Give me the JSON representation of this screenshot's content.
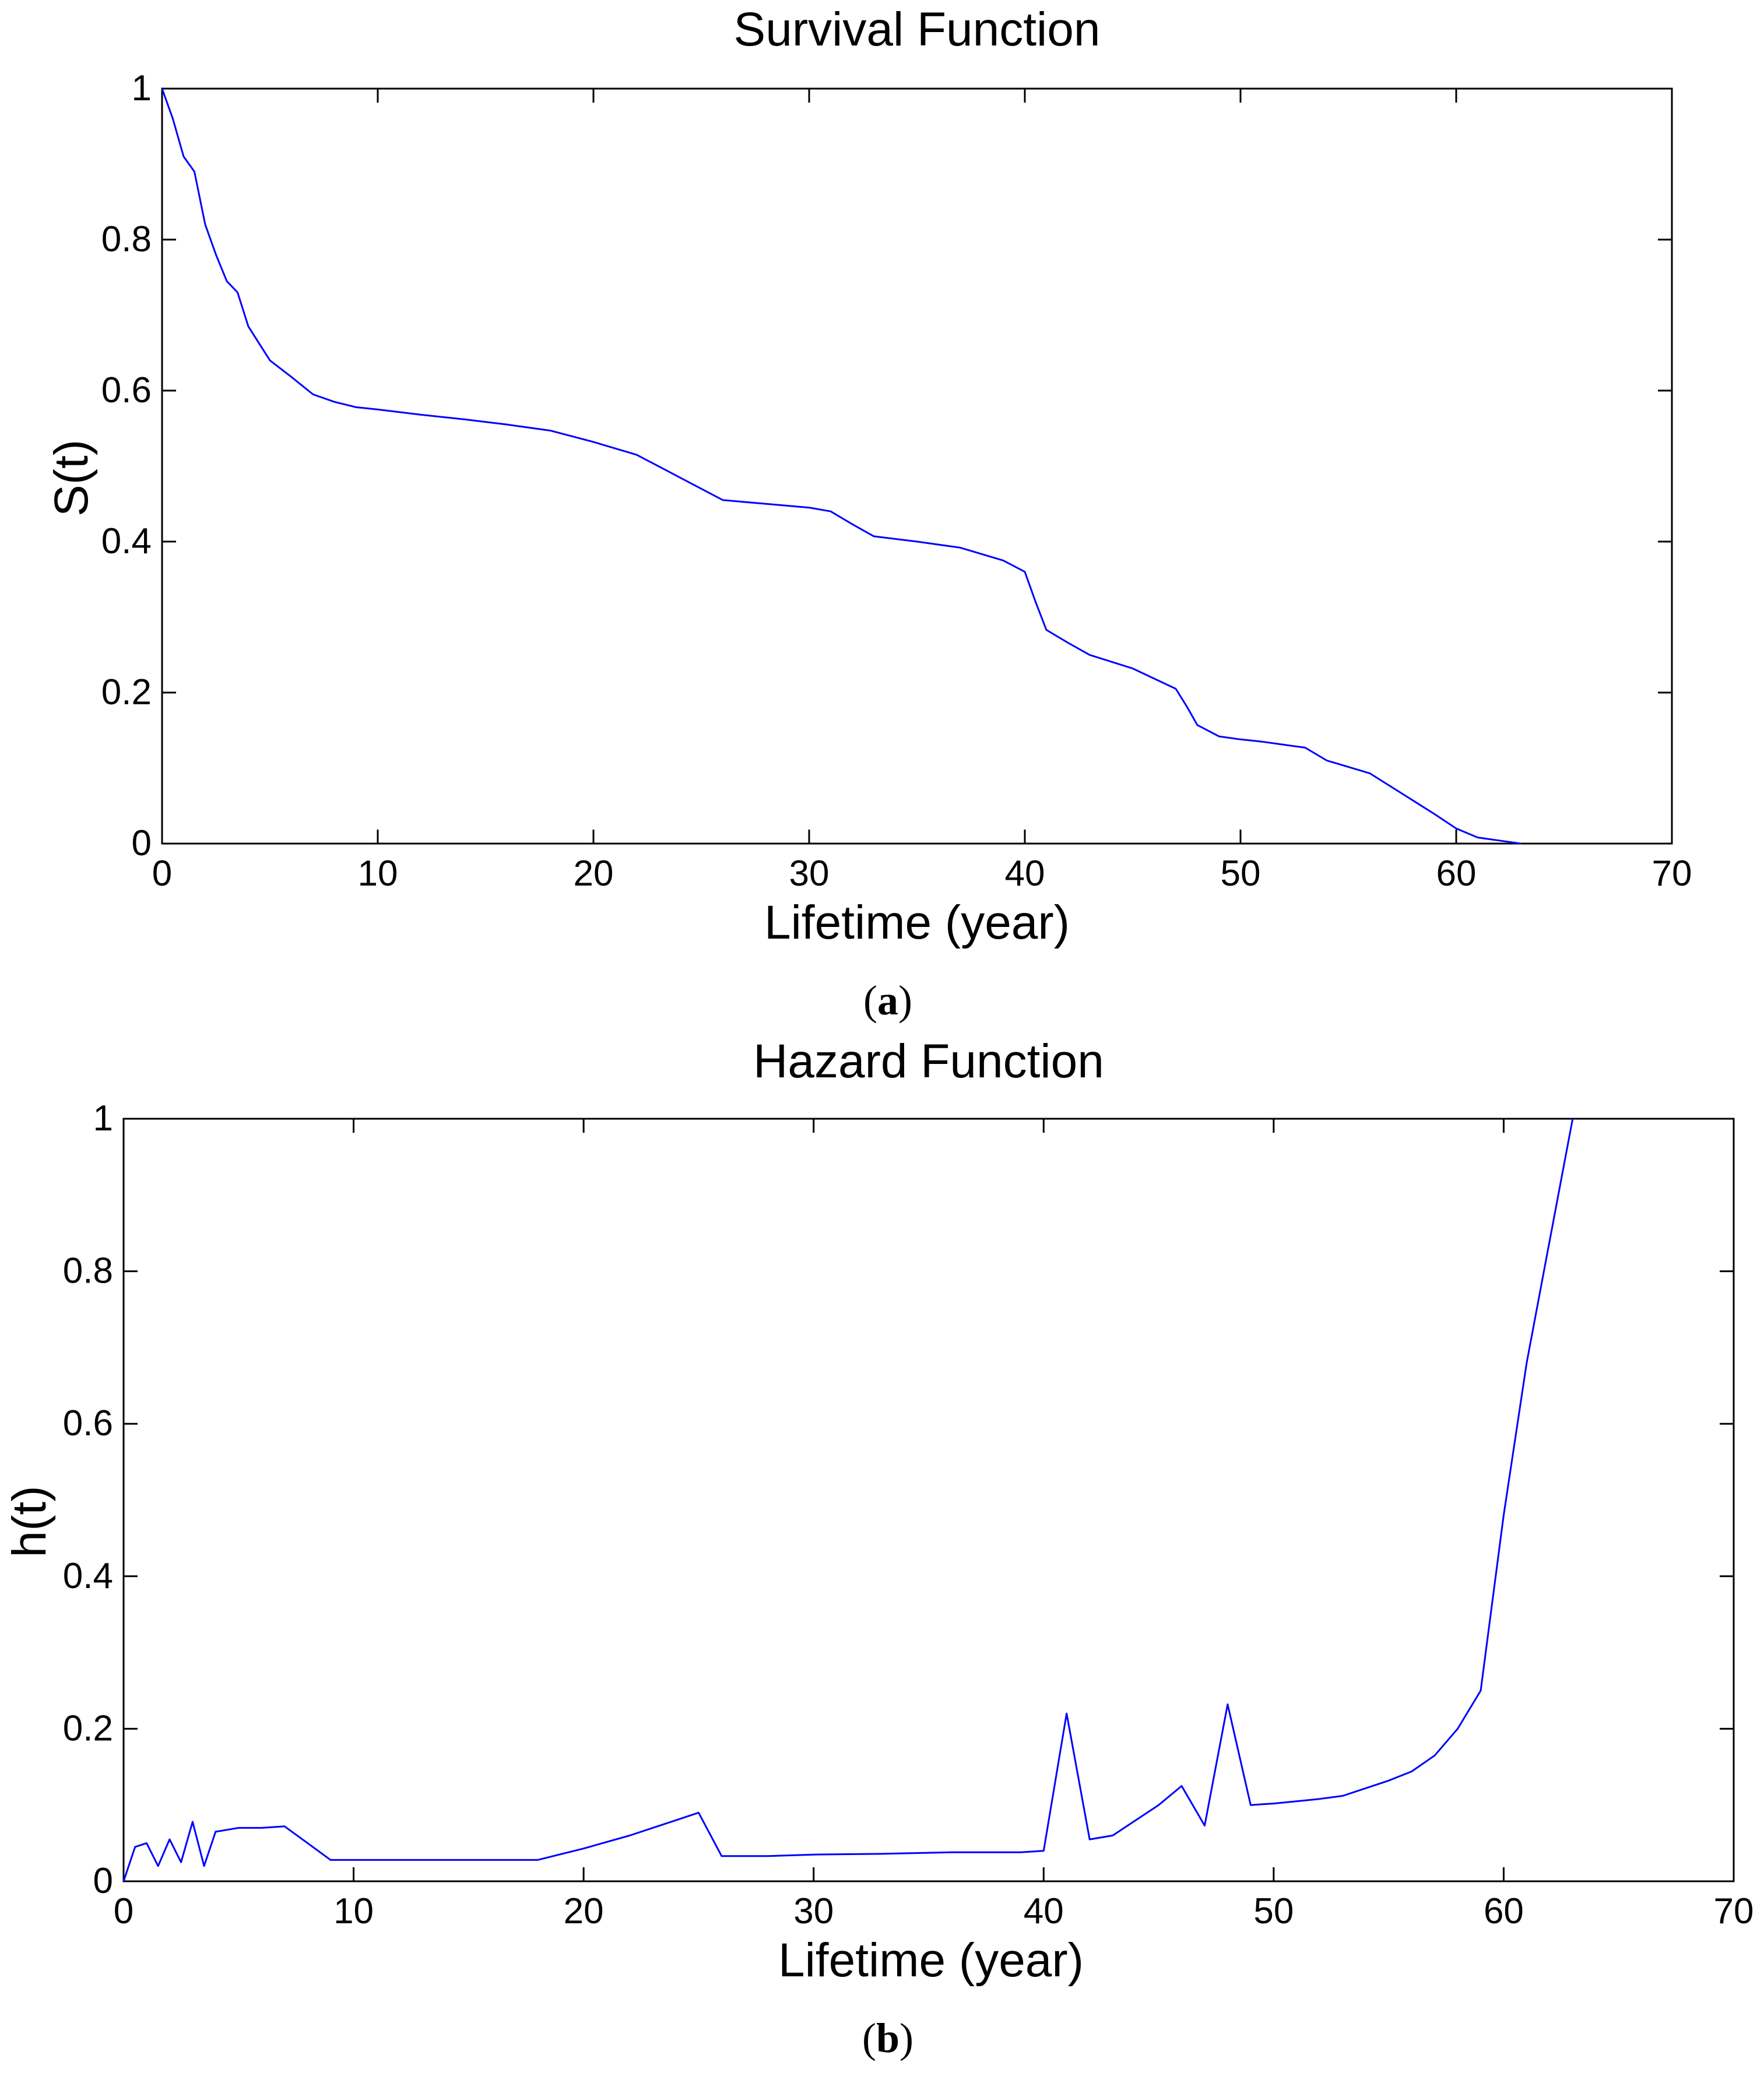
{
  "chart_data": [
    {
      "type": "line",
      "title": "Survival Function",
      "xlabel": "Lifetime (year)",
      "ylabel": "S(t)",
      "xlim": [
        0,
        70
      ],
      "ylim": [
        0,
        1
      ],
      "xticks": [
        0,
        10,
        20,
        30,
        40,
        50,
        60,
        70
      ],
      "xtick_labels": [
        "0",
        "10",
        "20",
        "30",
        "40",
        "50",
        "60",
        "70"
      ],
      "yticks": [
        0,
        0.2,
        0.4,
        0.6,
        0.8,
        1
      ],
      "ytick_labels": [
        "0",
        "0.2",
        "0.4",
        "0.6",
        "0.8",
        "1"
      ],
      "caption_open": "(",
      "caption_letter": "a",
      "caption_close": ")",
      "series": [
        {
          "name": "S(t)",
          "color": "#0000ff",
          "x": [
            0,
            0.5,
            1,
            1.5,
            2,
            2.5,
            3,
            3.5,
            4,
            5,
            6,
            7,
            8,
            9,
            10,
            12,
            14,
            16,
            18,
            20,
            22,
            24,
            26,
            28,
            30,
            31,
            32,
            33,
            35,
            37,
            39,
            40,
            40.5,
            41,
            42,
            43,
            45,
            47,
            47.5,
            48,
            49,
            50,
            51,
            52,
            53,
            54,
            56,
            57,
            58,
            59,
            60,
            61,
            62,
            63
          ],
          "y": [
            1,
            0.96,
            0.91,
            0.89,
            0.82,
            0.78,
            0.745,
            0.73,
            0.685,
            0.64,
            0.618,
            0.595,
            0.585,
            0.578,
            0.575,
            0.568,
            0.562,
            0.555,
            0.547,
            0.532,
            0.515,
            0.485,
            0.455,
            0.45,
            0.445,
            0.44,
            0.423,
            0.407,
            0.4,
            0.392,
            0.375,
            0.36,
            0.32,
            0.283,
            0.266,
            0.25,
            0.232,
            0.205,
            0.182,
            0.157,
            0.142,
            0.138,
            0.135,
            0.131,
            0.127,
            0.11,
            0.093,
            0.075,
            0.057,
            0.039,
            0.02,
            0.008,
            0.004,
            0
          ]
        }
      ]
    },
    {
      "type": "line",
      "title": "Hazard Function",
      "xlabel": "Lifetime (year)",
      "ylabel": "h(t)",
      "xlim": [
        0,
        70
      ],
      "ylim": [
        0,
        1
      ],
      "xticks": [
        0,
        10,
        20,
        30,
        40,
        50,
        60,
        70
      ],
      "xtick_labels": [
        "0",
        "10",
        "20",
        "30",
        "40",
        "50",
        "60",
        "70"
      ],
      "yticks": [
        0,
        0.2,
        0.4,
        0.6,
        0.8,
        1
      ],
      "ytick_labels": [
        "0",
        "0.2",
        "0.4",
        "0.6",
        "0.8",
        "1"
      ],
      "caption_open": "(",
      "caption_letter": "b",
      "caption_close": ")",
      "series": [
        {
          "name": "h(t)",
          "color": "#0000ff",
          "x": [
            0,
            0.5,
            1,
            1.5,
            2,
            2.5,
            3,
            3.5,
            4,
            5,
            6,
            7,
            8,
            9,
            10,
            12,
            14,
            16,
            18,
            20,
            22,
            24,
            25,
            26,
            28,
            30,
            33,
            36,
            39,
            40,
            41,
            42,
            43,
            44,
            45,
            46,
            47,
            48,
            49,
            50,
            51,
            52,
            53,
            54,
            55,
            56,
            57,
            58,
            59,
            60,
            61,
            62,
            63
          ],
          "y": [
            0,
            0.045,
            0.05,
            0.02,
            0.055,
            0.025,
            0.078,
            0.02,
            0.065,
            0.07,
            0.07,
            0.072,
            0.05,
            0.028,
            0.028,
            0.028,
            0.028,
            0.028,
            0.028,
            0.043,
            0.06,
            0.08,
            0.09,
            0.033,
            0.033,
            0.035,
            0.036,
            0.038,
            0.038,
            0.04,
            0.22,
            0.055,
            0.06,
            0.08,
            0.1,
            0.125,
            0.073,
            0.232,
            0.1,
            0.102,
            0.105,
            0.108,
            0.112,
            0.122,
            0.132,
            0.144,
            0.165,
            0.2,
            0.25,
            0.48,
            0.68,
            0.84,
            1.0
          ]
        }
      ]
    }
  ]
}
